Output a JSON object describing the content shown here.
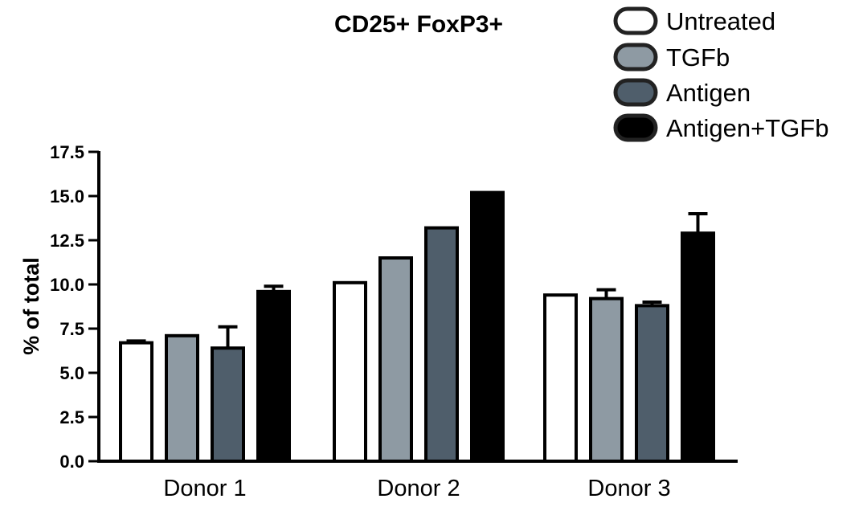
{
  "chart_data": {
    "type": "bar",
    "title": "CD25+ FoxP3+",
    "xlabel": "",
    "ylabel": "% of total",
    "ylim": [
      0,
      17.5
    ],
    "yticks": [
      "0.0",
      "2.5",
      "5.0",
      "7.5",
      "10.0",
      "12.5",
      "15.0",
      "17.5"
    ],
    "categories": [
      "Donor 1",
      "Donor 2",
      "Donor 3"
    ],
    "legend_position": "top-right",
    "grid": false,
    "series": [
      {
        "name": "Untreated",
        "color": "#ffffff",
        "values": [
          6.7,
          10.1,
          9.4
        ],
        "errors": [
          0.1,
          0.0,
          0.0
        ]
      },
      {
        "name": "TGFb",
        "color": "#8e9aa3",
        "values": [
          7.1,
          11.5,
          9.2
        ],
        "errors": [
          0.0,
          0.0,
          0.5
        ]
      },
      {
        "name": "Antigen",
        "color": "#4f5e6b",
        "values": [
          6.4,
          13.2,
          8.8
        ],
        "errors": [
          1.2,
          0.0,
          0.2
        ]
      },
      {
        "name": "Antigen+TGFb",
        "color": "#000000",
        "values": [
          9.6,
          15.2,
          12.9
        ],
        "errors": [
          0.3,
          0.0,
          1.1
        ]
      }
    ]
  }
}
